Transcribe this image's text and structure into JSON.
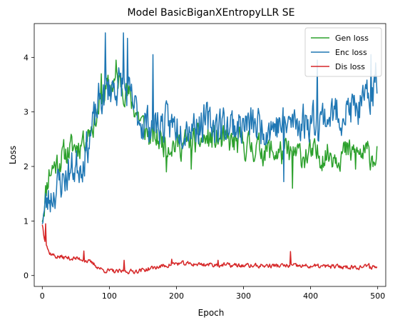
{
  "chart_data": {
    "type": "line",
    "title": "Model BasicBiganXEntropyLLR SE",
    "xlabel": "Epoch",
    "ylabel": "Loss",
    "xlim": [
      -12,
      512
    ],
    "ylim": [
      -0.2,
      4.62
    ],
    "xticks": [
      0,
      100,
      200,
      300,
      400,
      500
    ],
    "yticks": [
      0,
      1,
      2,
      3,
      4
    ],
    "grid": false,
    "legend": {
      "placement": "top-right"
    },
    "n_points": 500,
    "series": [
      {
        "name": "Gen loss",
        "color": "#2ca02c",
        "noise": 0.28,
        "seed": 11,
        "key": [
          [
            0,
            1.1
          ],
          [
            10,
            1.9
          ],
          [
            20,
            2.05
          ],
          [
            40,
            2.3
          ],
          [
            60,
            2.45
          ],
          [
            80,
            2.9
          ],
          [
            90,
            3.3
          ],
          [
            100,
            3.45
          ],
          [
            110,
            3.6
          ],
          [
            120,
            3.5
          ],
          [
            135,
            3.15
          ],
          [
            150,
            2.75
          ],
          [
            160,
            2.55
          ],
          [
            200,
            2.4
          ],
          [
            250,
            2.5
          ],
          [
            300,
            2.4
          ],
          [
            350,
            2.25
          ],
          [
            400,
            2.2
          ],
          [
            450,
            2.25
          ],
          [
            500,
            2.2
          ]
        ],
        "spikes": [
          [
            30,
            2.35
          ],
          [
            60,
            2.55
          ],
          [
            88,
            3.7
          ],
          [
            110,
            3.95
          ],
          [
            185,
            1.9
          ],
          [
            222,
            1.95
          ],
          [
            373,
            1.6
          ],
          [
            467,
            1.95
          ]
        ]
      },
      {
        "name": "Enc loss",
        "color": "#1f77b4",
        "noise": 0.38,
        "seed": 23,
        "key": [
          [
            0,
            1.1
          ],
          [
            10,
            1.4
          ],
          [
            20,
            1.6
          ],
          [
            40,
            1.9
          ],
          [
            60,
            2.1
          ],
          [
            75,
            2.7
          ],
          [
            85,
            3.2
          ],
          [
            100,
            3.45
          ],
          [
            120,
            3.5
          ],
          [
            140,
            3.0
          ],
          [
            150,
            2.8
          ],
          [
            200,
            2.75
          ],
          [
            250,
            2.8
          ],
          [
            300,
            2.75
          ],
          [
            350,
            2.75
          ],
          [
            400,
            2.85
          ],
          [
            450,
            3.0
          ],
          [
            480,
            3.1
          ],
          [
            500,
            3.5
          ]
        ],
        "spikes": [
          [
            94,
            4.45
          ],
          [
            121,
            4.45
          ],
          [
            127,
            4.35
          ],
          [
            165,
            4.05
          ],
          [
            360,
            1.72
          ],
          [
            410,
            3.95
          ],
          [
            490,
            4.05
          ],
          [
            497,
            3.9
          ]
        ]
      },
      {
        "name": "Dis loss",
        "color": "#d62728",
        "noise": 0.045,
        "seed": 37,
        "key": [
          [
            0,
            0.95
          ],
          [
            3,
            0.72
          ],
          [
            10,
            0.42
          ],
          [
            20,
            0.35
          ],
          [
            40,
            0.32
          ],
          [
            60,
            0.3
          ],
          [
            75,
            0.22
          ],
          [
            90,
            0.1
          ],
          [
            110,
            0.07
          ],
          [
            130,
            0.07
          ],
          [
            150,
            0.1
          ],
          [
            170,
            0.15
          ],
          [
            200,
            0.22
          ],
          [
            250,
            0.2
          ],
          [
            300,
            0.18
          ],
          [
            350,
            0.18
          ],
          [
            400,
            0.17
          ],
          [
            450,
            0.16
          ],
          [
            500,
            0.16
          ]
        ],
        "spikes": [
          [
            2,
            0.75
          ],
          [
            5,
            0.95
          ],
          [
            62,
            0.45
          ],
          [
            122,
            0.28
          ],
          [
            193,
            0.3
          ],
          [
            262,
            0.28
          ],
          [
            370,
            0.44
          ],
          [
            487,
            0.22
          ]
        ]
      }
    ]
  }
}
